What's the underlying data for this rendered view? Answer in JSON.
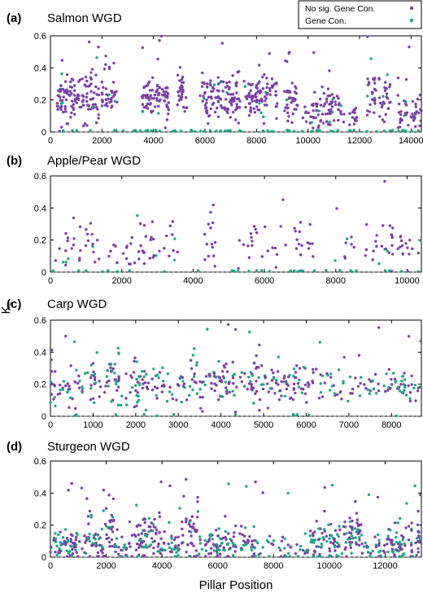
{
  "figure": {
    "ylabel": "K",
    "ylabel_sub": "s",
    "xlabel": "Pillar Position",
    "legend": [
      {
        "label": "No sig. Gene Con.",
        "color": "#7b3fa8"
      },
      {
        "label": "Gene Con.",
        "color": "#1aa784"
      }
    ]
  },
  "chart_data": [
    {
      "type": "scatter",
      "panel": "(a)",
      "title": "Salmon WGD",
      "xlim": [
        0,
        14400
      ],
      "ylim": [
        0,
        0.6
      ],
      "xticks": [
        0,
        2000,
        4000,
        6000,
        8000,
        10000,
        12000,
        14000
      ],
      "yticks": [
        0,
        0.2,
        0.4,
        0.6
      ],
      "ytick_labels": [
        "0",
        "0.2",
        "0.4",
        "0.6"
      ],
      "reference_line_y": 0,
      "clusters": [
        {
          "start": 250,
          "end": 1900,
          "center": 0.22,
          "spread": 0.07,
          "n": 130,
          "conv_frac": 0.05
        },
        {
          "start": 2000,
          "end": 2600,
          "center": 0.2,
          "spread": 0.06,
          "n": 40,
          "conv_frac": 0.04
        },
        {
          "start": 3500,
          "end": 4600,
          "center": 0.21,
          "spread": 0.06,
          "n": 80,
          "conv_frac": 0.05
        },
        {
          "start": 4900,
          "end": 5300,
          "center": 0.25,
          "spread": 0.07,
          "n": 30,
          "conv_frac": 0.04
        },
        {
          "start": 5800,
          "end": 7400,
          "center": 0.21,
          "spread": 0.07,
          "n": 110,
          "conv_frac": 0.06
        },
        {
          "start": 7500,
          "end": 8800,
          "center": 0.22,
          "spread": 0.07,
          "n": 90,
          "conv_frac": 0.06
        },
        {
          "start": 9000,
          "end": 9600,
          "center": 0.18,
          "spread": 0.06,
          "n": 40,
          "conv_frac": 0.04
        },
        {
          "start": 9800,
          "end": 11400,
          "center": 0.15,
          "spread": 0.06,
          "n": 80,
          "conv_frac": 0.05
        },
        {
          "start": 11600,
          "end": 11900,
          "center": 0.1,
          "spread": 0.05,
          "n": 15,
          "conv_frac": 0.06
        },
        {
          "start": 12300,
          "end": 13200,
          "center": 0.22,
          "spread": 0.07,
          "n": 55,
          "conv_frac": 0.05
        },
        {
          "start": 13400,
          "end": 14400,
          "center": 0.14,
          "spread": 0.06,
          "n": 45,
          "conv_frac": 0.05
        }
      ],
      "zero_conv_n": 70
    },
    {
      "type": "scatter",
      "panel": "(b)",
      "title": "Apple/Pear WGD",
      "xlim": [
        0,
        10400
      ],
      "ylim": [
        0,
        0.6
      ],
      "xticks": [
        0,
        2000,
        4000,
        6000,
        8000,
        10000
      ],
      "yticks": [
        0,
        0.2,
        0.4,
        0.6
      ],
      "ytick_labels": [
        "0",
        "0.2",
        "0.4",
        "0.6"
      ],
      "reference_line_y": 0,
      "clusters": [
        {
          "start": 0,
          "end": 1400,
          "center": 0.17,
          "spread": 0.09,
          "n": 30,
          "conv_frac": 0.05
        },
        {
          "start": 1500,
          "end": 2400,
          "center": 0.15,
          "spread": 0.07,
          "n": 14,
          "conv_frac": 0.05
        },
        {
          "start": 2400,
          "end": 3600,
          "center": 0.17,
          "spread": 0.08,
          "n": 30,
          "conv_frac": 0.08
        },
        {
          "start": 4300,
          "end": 4700,
          "center": 0.18,
          "spread": 0.1,
          "n": 14,
          "conv_frac": 0.05
        },
        {
          "start": 5200,
          "end": 6600,
          "center": 0.14,
          "spread": 0.07,
          "n": 22,
          "conv_frac": 0.05
        },
        {
          "start": 6800,
          "end": 7400,
          "center": 0.17,
          "spread": 0.09,
          "n": 16,
          "conv_frac": 0.05
        },
        {
          "start": 7800,
          "end": 8600,
          "center": 0.14,
          "spread": 0.06,
          "n": 9,
          "conv_frac": 0.05
        },
        {
          "start": 8800,
          "end": 10400,
          "center": 0.17,
          "spread": 0.07,
          "n": 40,
          "conv_frac": 0.08
        }
      ],
      "zero_conv_n": 35
    },
    {
      "type": "scatter",
      "panel": "(c)",
      "title": "Carp WGD",
      "xlim": [
        0,
        8700
      ],
      "ylim": [
        0,
        0.6
      ],
      "xticks": [
        0,
        1000,
        2000,
        3000,
        4000,
        5000,
        6000,
        7000,
        8000
      ],
      "yticks": [
        0,
        0.2,
        0.4,
        0.6
      ],
      "ytick_labels": [
        "0",
        "0.2",
        "0.4",
        "0.6"
      ],
      "reference_line_y": 0,
      "clusters": [
        {
          "start": 0,
          "end": 2600,
          "center": 0.2,
          "spread": 0.07,
          "n": 150,
          "conv_frac": 0.4
        },
        {
          "start": 2600,
          "end": 3200,
          "center": 0.18,
          "spread": 0.06,
          "n": 25,
          "conv_frac": 0.4
        },
        {
          "start": 3200,
          "end": 4500,
          "center": 0.21,
          "spread": 0.07,
          "n": 80,
          "conv_frac": 0.35
        },
        {
          "start": 4500,
          "end": 5200,
          "center": 0.2,
          "spread": 0.08,
          "n": 45,
          "conv_frac": 0.4
        },
        {
          "start": 5200,
          "end": 6600,
          "center": 0.2,
          "spread": 0.06,
          "n": 70,
          "conv_frac": 0.3
        },
        {
          "start": 6600,
          "end": 8700,
          "center": 0.19,
          "spread": 0.06,
          "n": 85,
          "conv_frac": 0.4
        }
      ],
      "zero_conv_n": 12
    },
    {
      "type": "scatter",
      "panel": "(d)",
      "title": "Sturgeon WGD",
      "xlim": [
        0,
        13300
      ],
      "ylim": [
        0,
        0.6
      ],
      "xticks": [
        0,
        2000,
        4000,
        6000,
        8000,
        10000,
        12000
      ],
      "yticks": [
        0,
        0.2,
        0.4,
        0.6
      ],
      "ytick_labels": [
        "0",
        "0.2",
        "0.4",
        "0.6"
      ],
      "reference_line_y": 0,
      "clusters": [
        {
          "start": 0,
          "end": 1000,
          "center": 0.08,
          "spread": 0.05,
          "n": 60,
          "conv_frac": 0.4
        },
        {
          "start": 1000,
          "end": 1900,
          "center": 0.1,
          "spread": 0.06,
          "n": 50,
          "conv_frac": 0.4
        },
        {
          "start": 1900,
          "end": 2300,
          "center": 0.18,
          "spread": 0.08,
          "n": 30,
          "conv_frac": 0.15
        },
        {
          "start": 2300,
          "end": 3000,
          "center": 0.08,
          "spread": 0.05,
          "n": 30,
          "conv_frac": 0.5
        },
        {
          "start": 3000,
          "end": 4100,
          "center": 0.12,
          "spread": 0.07,
          "n": 80,
          "conv_frac": 0.35
        },
        {
          "start": 4100,
          "end": 4700,
          "center": 0.06,
          "spread": 0.04,
          "n": 25,
          "conv_frac": 0.5
        },
        {
          "start": 4700,
          "end": 5300,
          "center": 0.15,
          "spread": 0.08,
          "n": 40,
          "conv_frac": 0.2
        },
        {
          "start": 5300,
          "end": 7400,
          "center": 0.08,
          "spread": 0.05,
          "n": 110,
          "conv_frac": 0.5
        },
        {
          "start": 7400,
          "end": 9300,
          "center": 0.05,
          "spread": 0.04,
          "n": 40,
          "conv_frac": 0.5
        },
        {
          "start": 9300,
          "end": 10500,
          "center": 0.09,
          "spread": 0.06,
          "n": 70,
          "conv_frac": 0.45
        },
        {
          "start": 10500,
          "end": 11200,
          "center": 0.14,
          "spread": 0.06,
          "n": 55,
          "conv_frac": 0.3
        },
        {
          "start": 11200,
          "end": 12000,
          "center": 0.05,
          "spread": 0.04,
          "n": 25,
          "conv_frac": 0.5
        },
        {
          "start": 12000,
          "end": 13300,
          "center": 0.1,
          "spread": 0.06,
          "n": 80,
          "conv_frac": 0.45
        }
      ],
      "zero_conv_n": 10
    }
  ]
}
